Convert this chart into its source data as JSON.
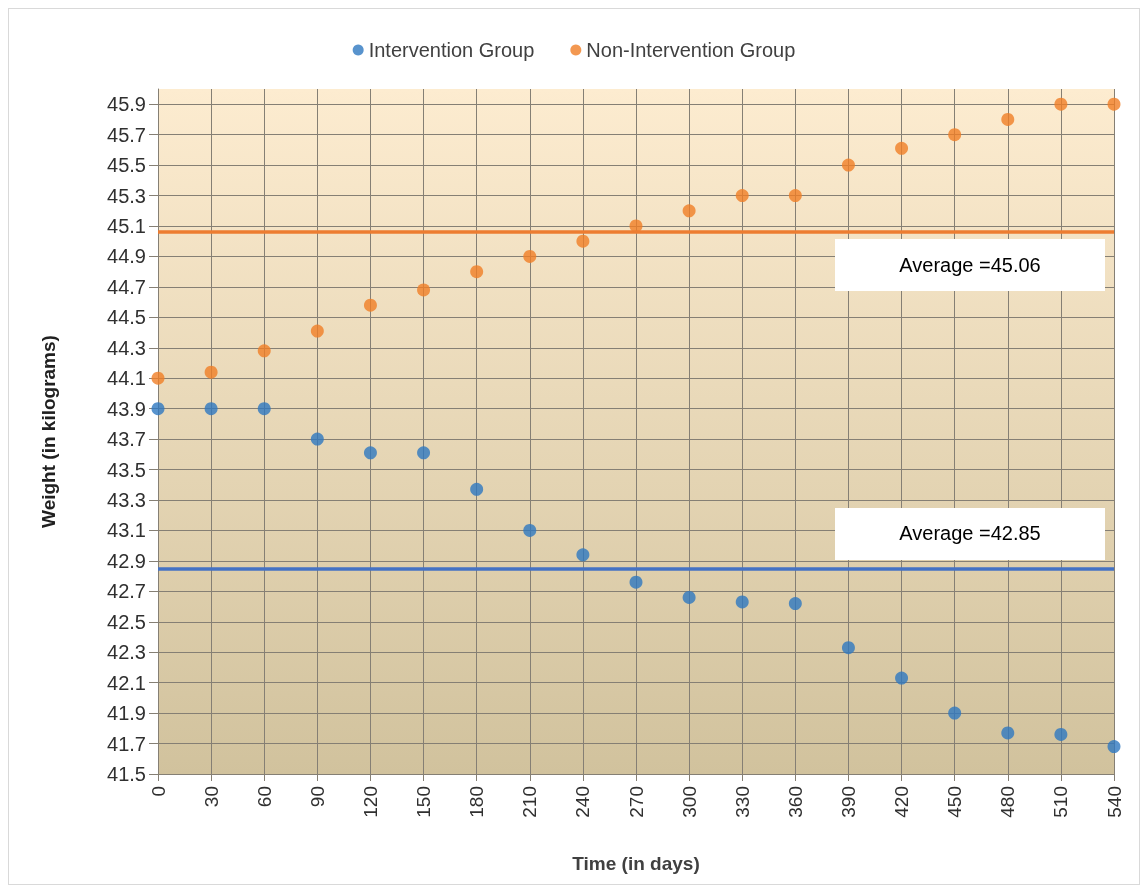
{
  "chart_data": {
    "type": "scatter",
    "xlabel": "Time (in days)",
    "ylabel": "Weight (in kilograms)",
    "x": [
      0,
      30,
      60,
      90,
      120,
      150,
      180,
      210,
      240,
      270,
      300,
      330,
      360,
      390,
      420,
      450,
      480,
      510,
      540
    ],
    "series": [
      {
        "name": "Intervention Group",
        "color": "#2e78c0",
        "values": [
          43.9,
          43.9,
          43.9,
          43.7,
          43.61,
          43.61,
          43.37,
          43.1,
          42.94,
          42.76,
          42.66,
          42.63,
          42.62,
          42.33,
          42.13,
          41.9,
          41.77,
          41.76,
          41.68
        ]
      },
      {
        "name": "Non-Intervention Group",
        "color": "#f07e26",
        "values": [
          44.1,
          44.14,
          44.28,
          44.41,
          44.58,
          44.68,
          44.8,
          44.9,
          45.0,
          45.1,
          45.2,
          45.3,
          45.3,
          45.5,
          45.61,
          45.7,
          45.8,
          45.9,
          45.9
        ]
      }
    ],
    "xlim": [
      0,
      540
    ],
    "xticks": [
      0,
      30,
      60,
      90,
      120,
      150,
      180,
      210,
      240,
      270,
      300,
      330,
      360,
      390,
      420,
      450,
      480,
      510,
      540
    ],
    "ylim": [
      41.5,
      46.0
    ],
    "yticks": [
      41.5,
      41.7,
      41.9,
      42.1,
      42.3,
      42.5,
      42.7,
      42.9,
      43.1,
      43.3,
      43.5,
      43.7,
      43.9,
      44.1,
      44.3,
      44.5,
      44.7,
      44.9,
      45.1,
      45.3,
      45.5,
      45.7,
      45.9
    ],
    "ref_lines": [
      {
        "axis": "y",
        "value": 45.06,
        "label": "Average =45.06",
        "color": "#ed7d31"
      },
      {
        "axis": "y",
        "value": 42.85,
        "label": "Average =42.85",
        "color": "#4472c4"
      }
    ],
    "grid": true,
    "legend": "top",
    "marker": "circle"
  }
}
